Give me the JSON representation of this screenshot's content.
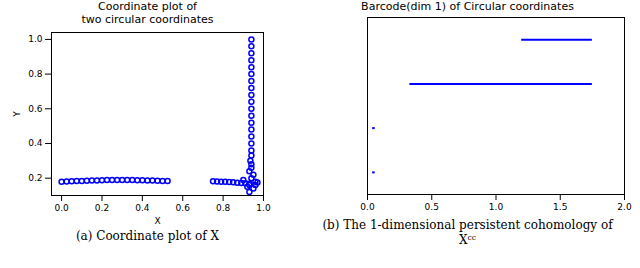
{
  "chart_data": [
    {
      "type": "scatter",
      "title": "Coordinate plot of\ntwo circular coordinates",
      "xlabel": "X",
      "ylabel": "Y",
      "caption": "(a) Coordinate plot of X",
      "color": "#0000ff",
      "marker": "circle",
      "x": [
        0,
        0.025,
        0.05,
        0.075,
        0.1,
        0.125,
        0.15,
        0.175,
        0.2,
        0.225,
        0.25,
        0.275,
        0.3,
        0.325,
        0.35,
        0.375,
        0.4,
        0.425,
        0.45,
        0.475,
        0.5,
        0.525,
        0.75,
        0.77,
        0.79,
        0.81,
        0.83,
        0.85,
        0.87,
        0.89,
        0.91,
        0.93,
        0.93,
        0.95,
        0.93,
        0.96,
        0.94,
        0.95,
        0.93,
        0.94,
        0.94,
        0.935,
        0.94,
        0.94,
        0.94,
        0.94,
        0.94,
        0.94,
        0.94,
        0.94,
        0.94,
        0.94,
        0.94,
        0.94,
        0.94,
        0.94,
        0.94,
        0.94,
        0.94,
        0.94,
        0.9,
        0.97,
        0.96,
        0.92
      ],
      "y": [
        0.18,
        0.181,
        0.182,
        0.183,
        0.184,
        0.185,
        0.186,
        0.187,
        0.188,
        0.189,
        0.189,
        0.19,
        0.19,
        0.189,
        0.189,
        0.188,
        0.188,
        0.187,
        0.186,
        0.185,
        0.184,
        0.183,
        0.182,
        0.181,
        0.18,
        0.179,
        0.178,
        0.176,
        0.174,
        0.172,
        0.17,
        0.168,
        0.12,
        0.14,
        0.16,
        0.18,
        0.2,
        0.22,
        0.24,
        0.26,
        0.28,
        0.3,
        0.33,
        0.36,
        0.4,
        0.44,
        0.48,
        0.52,
        0.56,
        0.6,
        0.64,
        0.68,
        0.72,
        0.76,
        0.8,
        0.84,
        0.88,
        0.92,
        0.96,
        1.0,
        0.19,
        0.175,
        0.16,
        0.15
      ],
      "xlim": [
        -0.05,
        1.0
      ],
      "ylim": [
        0.1,
        1.04
      ],
      "xticks": [
        {
          "value": 0,
          "label": "0.0"
        },
        {
          "value": 0.2,
          "label": "0.2"
        },
        {
          "value": 0.4,
          "label": "0.4"
        },
        {
          "value": 0.6,
          "label": "0.6"
        },
        {
          "value": 0.8,
          "label": "0.8"
        },
        {
          "value": 1,
          "label": "1.0"
        }
      ],
      "yticks": [
        {
          "value": 0.2,
          "label": "0.2"
        },
        {
          "value": 0.4,
          "label": "0.4"
        },
        {
          "value": 0.6,
          "label": "0.6"
        },
        {
          "value": 0.8,
          "label": "0.8"
        },
        {
          "value": 1,
          "label": "1.0"
        }
      ]
    },
    {
      "type": "barcode",
      "title": "Barcode(dim 1) of Circular coordinates",
      "caption": "(b) The 1-dimensional persistent cohomology of Xᶜᶜ",
      "color": "#0000ff",
      "intervals": [
        [
          1.2,
          1.75
        ],
        [
          0.33,
          1.75
        ],
        [
          0.04,
          0.06
        ],
        [
          0.04,
          0.06
        ]
      ],
      "xlim": [
        0,
        2
      ],
      "xticks": [
        {
          "value": 0,
          "label": "0.0"
        },
        {
          "value": 0.5,
          "label": "0.5"
        },
        {
          "value": 1,
          "label": "1.0"
        },
        {
          "value": 1.5,
          "label": "1.5"
        },
        {
          "value": 2,
          "label": "2.0"
        }
      ],
      "tick_labels": "x"
    }
  ]
}
